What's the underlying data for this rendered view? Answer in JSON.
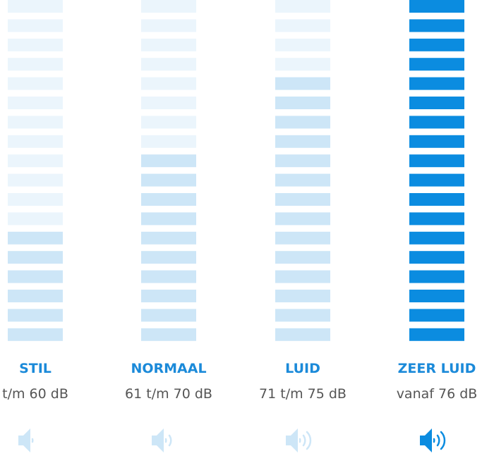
{
  "columns": [
    {
      "label": "STIL",
      "range": "t/m 60 dB"
    },
    {
      "label": "NORMAAL",
      "range": "61 t/m 70 dB"
    },
    {
      "label": "LUID",
      "range": "71 t/m 75 dB"
    },
    {
      "label": "ZEER LUID",
      "range": "vanaf 76 dB"
    }
  ]
}
